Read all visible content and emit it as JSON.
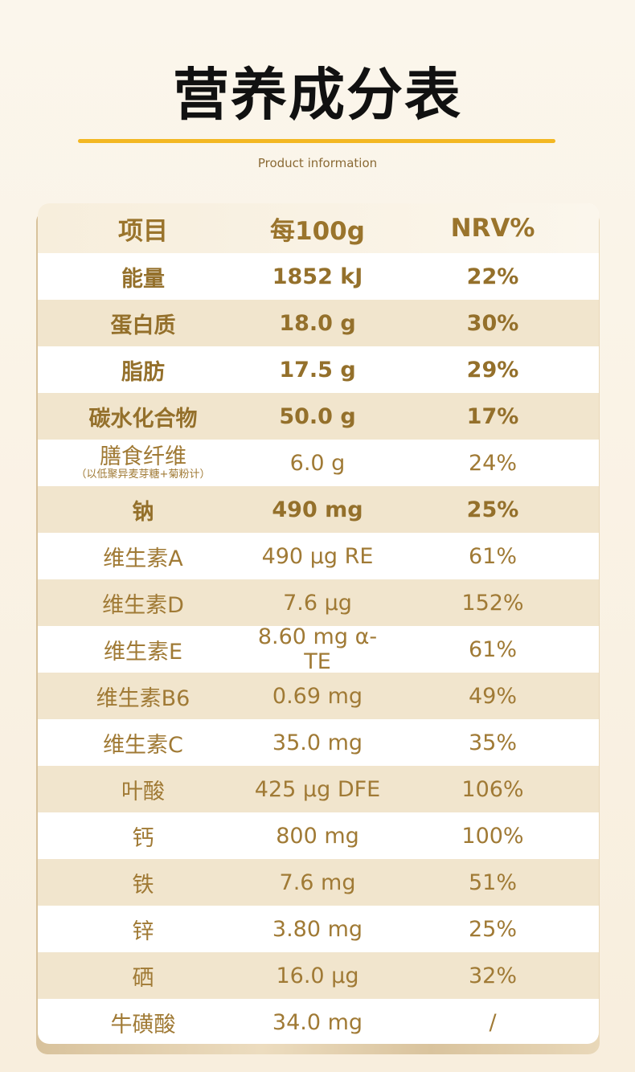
{
  "title": "营养成分表",
  "subtitle": "Product information",
  "colors": {
    "accent_line": "#f3b722",
    "text": "#a07a35",
    "alt_row": "#f1e5cd"
  },
  "table": {
    "headers": [
      "项目",
      "每100g",
      "NRV%"
    ],
    "rows": [
      {
        "item": "能量",
        "per100g": "1852 kJ",
        "nrv": "22%",
        "bold": true
      },
      {
        "item": "蛋白质",
        "per100g": "18.0 g",
        "nrv": "30%",
        "bold": true
      },
      {
        "item": "脂肪",
        "per100g": "17.5 g",
        "nrv": "29%",
        "bold": true
      },
      {
        "item": "碳水化合物",
        "per100g": "50.0 g",
        "nrv": "17%",
        "bold": true
      },
      {
        "item": "膳食纤维",
        "note": "（以低聚异麦芽糖+菊粉计）",
        "per100g": "6.0 g",
        "nrv": "24%",
        "bold": false
      },
      {
        "item": "钠",
        "per100g": "490 mg",
        "nrv": "25%",
        "bold": true
      },
      {
        "item": "维生素A",
        "per100g": "490 µg RE",
        "nrv": "61%",
        "bold": false
      },
      {
        "item": "维生素D",
        "per100g": "7.6 µg",
        "nrv": "152%",
        "bold": false
      },
      {
        "item": "维生素E",
        "per100g": "8.60 mg α-TE",
        "nrv": "61%",
        "bold": false
      },
      {
        "item": "维生素B6",
        "per100g": "0.69 mg",
        "nrv": "49%",
        "bold": false
      },
      {
        "item": "维生素C",
        "per100g": "35.0 mg",
        "nrv": "35%",
        "bold": false
      },
      {
        "item": "叶酸",
        "per100g": "425 µg DFE",
        "nrv": "106%",
        "bold": false
      },
      {
        "item": "钙",
        "per100g": "800 mg",
        "nrv": "100%",
        "bold": false
      },
      {
        "item": "铁",
        "per100g": "7.6 mg",
        "nrv": "51%",
        "bold": false
      },
      {
        "item": "锌",
        "per100g": "3.80 mg",
        "nrv": "25%",
        "bold": false
      },
      {
        "item": "硒",
        "per100g": "16.0 µg",
        "nrv": "32%",
        "bold": false
      },
      {
        "item": "牛磺酸",
        "per100g": "34.0 mg",
        "nrv": "/",
        "bold": false
      }
    ]
  }
}
